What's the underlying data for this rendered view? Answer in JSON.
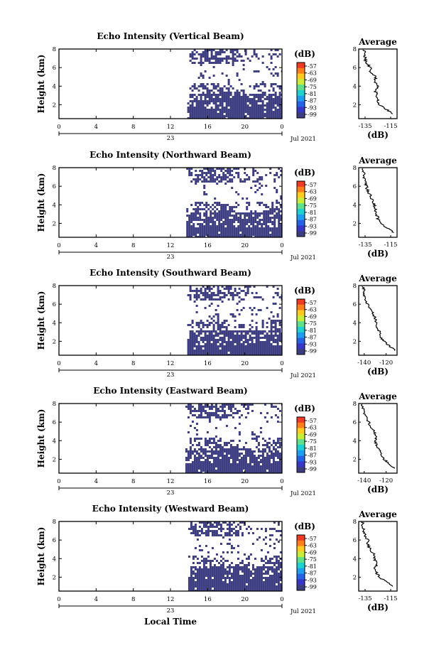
{
  "figure": {
    "x_axis_label": "Local Time",
    "date_label": "Jul 2021",
    "day_label": "23",
    "colorbar_unit": "(dB)",
    "colorbar_ticks": [
      "-57",
      "-63",
      "-69",
      "-75",
      "-81",
      "-87",
      "-93",
      "-99"
    ],
    "colorbar_colors": [
      "#f03a24",
      "#ff7e1a",
      "#ffcb1e",
      "#c8ee3a",
      "#5fe08a",
      "#1fd2d2",
      "#1e9ef0",
      "#2462e6",
      "#3838c8",
      "#3d3d82"
    ]
  },
  "chart_data": [
    {
      "type": "heatmap",
      "title": "Echo Intensity (Vertical Beam)",
      "ylabel": "Height (km)",
      "xlabel": "",
      "x_ticks": [
        "0",
        "4",
        "8",
        "12",
        "16",
        "20",
        "0"
      ],
      "xlim": [
        0,
        24
      ],
      "y_ticks": [
        "2",
        "4",
        "6",
        "8"
      ],
      "ylim": [
        0.5,
        8
      ],
      "z_unit": "dB",
      "z_range": [
        -99,
        -57
      ],
      "data_coverage_start_hour": 13.8,
      "dominant_value_db": -99,
      "average_profile": {
        "title": "Average",
        "xlabel": "(dB)",
        "x_ticks": [
          "-135",
          "-115"
        ],
        "xlim": [
          -140,
          -110
        ],
        "y_ticks": [
          "2",
          "4",
          "6",
          "8"
        ],
        "ylim": [
          0.5,
          8
        ],
        "height_km": [
          1,
          1.5,
          2,
          2.5,
          3,
          3.5,
          4,
          4.5,
          5,
          5.5,
          6,
          6.5,
          7,
          7.5,
          8
        ],
        "value_db": [
          -113,
          -118,
          -124,
          -125,
          -126,
          -127,
          -125,
          -127,
          -127,
          -131,
          -131,
          -134,
          -135,
          -135,
          -136
        ]
      }
    },
    {
      "type": "heatmap",
      "title": "Echo Intensity (Northward Beam)",
      "ylabel": "Height (km)",
      "xlabel": "",
      "x_ticks": [
        "0",
        "4",
        "8",
        "12",
        "16",
        "20",
        "0"
      ],
      "xlim": [
        0,
        24
      ],
      "y_ticks": [
        "2",
        "4",
        "6",
        "8"
      ],
      "ylim": [
        0.5,
        8
      ],
      "z_unit": "dB",
      "z_range": [
        -99,
        -57
      ],
      "data_coverage_start_hour": 13.7,
      "dominant_value_db": -99,
      "average_profile": {
        "title": "Average",
        "xlabel": "(dB)",
        "x_ticks": [
          "-135",
          "-115"
        ],
        "xlim": [
          -140,
          -110
        ],
        "y_ticks": [
          "2",
          "4",
          "6",
          "8"
        ],
        "ylim": [
          0.5,
          8
        ],
        "height_km": [
          1,
          1.5,
          2,
          2.5,
          3,
          3.5,
          4,
          4.5,
          5,
          5.5,
          6,
          6.5,
          7,
          7.5,
          8
        ],
        "value_db": [
          -112,
          -118,
          -123,
          -125,
          -126,
          -127,
          -128,
          -129,
          -131,
          -133,
          -134,
          -135,
          -136,
          -136,
          -137
        ]
      }
    },
    {
      "type": "heatmap",
      "title": "Echo Intensity (Southward Beam)",
      "ylabel": "Height (km)",
      "xlabel": "",
      "x_ticks": [
        "0",
        "4",
        "8",
        "12",
        "16",
        "20",
        "0"
      ],
      "xlim": [
        0,
        24
      ],
      "y_ticks": [
        "2",
        "4",
        "6",
        "8"
      ],
      "ylim": [
        0.5,
        8
      ],
      "z_unit": "dB",
      "z_range": [
        -99,
        -57
      ],
      "data_coverage_start_hour": 13.8,
      "dominant_value_db": -99,
      "average_profile": {
        "title": "Average",
        "xlabel": "(dB)",
        "x_ticks": [
          "-140",
          "-120"
        ],
        "xlim": [
          -145,
          -110
        ],
        "y_ticks": [
          "2",
          "4",
          "6",
          "8"
        ],
        "ylim": [
          0.5,
          8
        ],
        "height_km": [
          1,
          1.5,
          2,
          2.5,
          3,
          3.5,
          4,
          4.5,
          5,
          5.5,
          6,
          6.5,
          7,
          7.5,
          8
        ],
        "value_db": [
          -112,
          -117,
          -122,
          -125,
          -126,
          -128,
          -129,
          -130,
          -132,
          -135,
          -137,
          -139,
          -140,
          -140,
          -141
        ]
      }
    },
    {
      "type": "heatmap",
      "title": "Echo Intensity (Eastward Beam)",
      "ylabel": "Height (km)",
      "xlabel": "",
      "x_ticks": [
        "0",
        "4",
        "8",
        "12",
        "16",
        "20",
        "0"
      ],
      "xlim": [
        0,
        24
      ],
      "y_ticks": [
        "2",
        "4",
        "6",
        "8"
      ],
      "ylim": [
        0.5,
        8
      ],
      "z_unit": "dB",
      "z_range": [
        -99,
        -57
      ],
      "data_coverage_start_hour": 13.6,
      "dominant_value_db": -99,
      "average_profile": {
        "title": "Average",
        "xlabel": "(dB)",
        "x_ticks": [
          "-140",
          "-120"
        ],
        "xlim": [
          -145,
          -110
        ],
        "y_ticks": [
          "2",
          "4",
          "6",
          "8"
        ],
        "ylim": [
          0.5,
          8
        ],
        "height_km": [
          1,
          1.5,
          2,
          2.5,
          3,
          3.5,
          4,
          4.5,
          5,
          5.5,
          6,
          6.5,
          7,
          7.5,
          8
        ],
        "value_db": [
          -112,
          -117,
          -122,
          -125,
          -126,
          -129,
          -130,
          -129,
          -131,
          -134,
          -136,
          -138,
          -140,
          -141,
          -142
        ]
      }
    },
    {
      "type": "heatmap",
      "title": "Echo Intensity (Westward Beam)",
      "ylabel": "Height (km)",
      "xlabel": "Local Time",
      "x_ticks": [
        "0",
        "4",
        "8",
        "12",
        "16",
        "20",
        "0"
      ],
      "xlim": [
        0,
        24
      ],
      "y_ticks": [
        "2",
        "4",
        "6",
        "8"
      ],
      "ylim": [
        0.5,
        8
      ],
      "z_unit": "dB",
      "z_range": [
        -99,
        -57
      ],
      "data_coverage_start_hour": 13.9,
      "dominant_value_db": -99,
      "average_profile": {
        "title": "Average",
        "xlabel": "(dB)",
        "x_ticks": [
          "-135",
          "-115"
        ],
        "xlim": [
          -140,
          -110
        ],
        "y_ticks": [
          "2",
          "4",
          "6",
          "8"
        ],
        "ylim": [
          0.5,
          8
        ],
        "height_km": [
          1,
          1.5,
          2,
          2.5,
          3,
          3.5,
          4,
          4.5,
          5,
          5.5,
          6,
          6.5,
          7,
          7.5,
          8
        ],
        "value_db": [
          -113,
          -118,
          -124,
          -126,
          -127,
          -126,
          -128,
          -128,
          -131,
          -133,
          -133,
          -135,
          -136,
          -137,
          -137
        ]
      }
    }
  ]
}
